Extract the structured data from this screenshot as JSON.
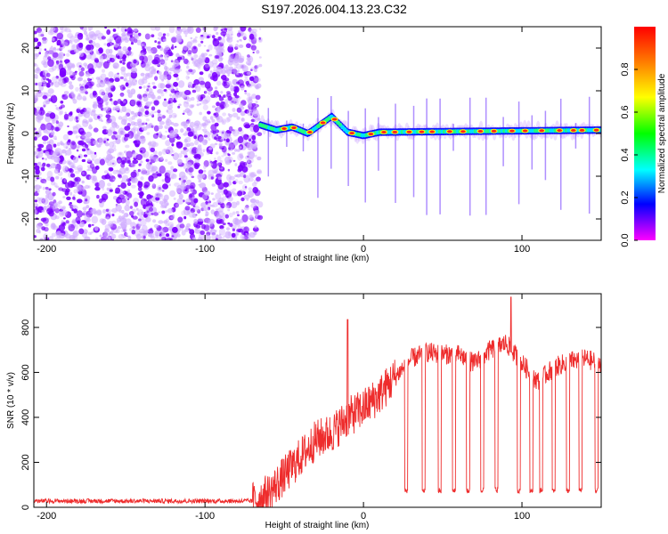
{
  "title": "S197.2026.004.13.23.C32",
  "colors": {
    "line": "#ee2c2c",
    "grid_tick": "#000000",
    "scatter_dark": "#7b00ff",
    "scatter_light": "#cfaaff"
  },
  "chart_data": [
    {
      "type": "heatmap",
      "name": "spectrogram",
      "xlabel": "Height of straight line (km)",
      "ylabel": "Frequency (Hz)",
      "xlim": [
        -208,
        150
      ],
      "ylim": [
        -25,
        25
      ],
      "xticks": [
        -200,
        -100,
        0,
        100
      ],
      "xtick_labels": [
        "-200",
        "-100",
        "0",
        "100"
      ],
      "yticks": [
        -20,
        -10,
        0,
        10,
        20
      ],
      "ytick_labels": [
        "-20",
        "-10",
        "0",
        "10",
        "20"
      ],
      "noise_region_x": [
        -208,
        -65
      ],
      "signal_band": {
        "x_start": -65,
        "x_end": 150,
        "freq_center_points": [
          [
            -65,
            2
          ],
          [
            -55,
            0.8
          ],
          [
            -45,
            1.5
          ],
          [
            -35,
            0
          ],
          [
            -20,
            4
          ],
          [
            -10,
            0.3
          ],
          [
            0,
            -0.5
          ],
          [
            10,
            0.3
          ],
          [
            150,
            0.8
          ]
        ]
      },
      "colorbar": {
        "label": "Normalized spectral amplitude",
        "ticks": [
          0.0,
          0.2,
          0.4,
          0.6,
          0.8
        ],
        "tick_labels": [
          "0.0",
          "0.2",
          "0.4",
          "0.6",
          "0.8"
        ],
        "range": [
          0,
          1
        ]
      }
    },
    {
      "type": "line",
      "name": "snr",
      "xlabel": "Height of straight line (km)",
      "ylabel": "SNR (10 * v/v)",
      "xlim": [
        -208,
        150
      ],
      "ylim": [
        0,
        950
      ],
      "xticks": [
        -200,
        -100,
        0,
        100
      ],
      "xtick_labels": [
        "-200",
        "-100",
        "0",
        "100"
      ],
      "yticks": [
        0,
        200,
        400,
        600,
        800
      ],
      "ytick_labels": [
        "0",
        "200",
        "400",
        "600",
        "800"
      ],
      "series": [
        {
          "name": "SNR",
          "trend": {
            "x": [
              -208,
              -70,
              -60,
              -50,
              -40,
              -30,
              -20,
              -10,
              0,
              10,
              20,
              30,
              40,
              50,
              60,
              70,
              80,
              90,
              100,
              110,
              120,
              130,
              140,
              150
            ],
            "y": [
              25,
              25,
              60,
              140,
              220,
              300,
              330,
              400,
              440,
              500,
              580,
              660,
              690,
              680,
              680,
              640,
              700,
              730,
              640,
              560,
              620,
              650,
              660,
              640
            ]
          },
          "dips_x": [
            27,
            38,
            48,
            57,
            66,
            75,
            84,
            98,
            106,
            112,
            120,
            129,
            137,
            147
          ],
          "dip_level": 70,
          "spikes": [
            [
              -10,
              835
            ],
            [
              93,
              935
            ]
          ]
        }
      ]
    }
  ]
}
